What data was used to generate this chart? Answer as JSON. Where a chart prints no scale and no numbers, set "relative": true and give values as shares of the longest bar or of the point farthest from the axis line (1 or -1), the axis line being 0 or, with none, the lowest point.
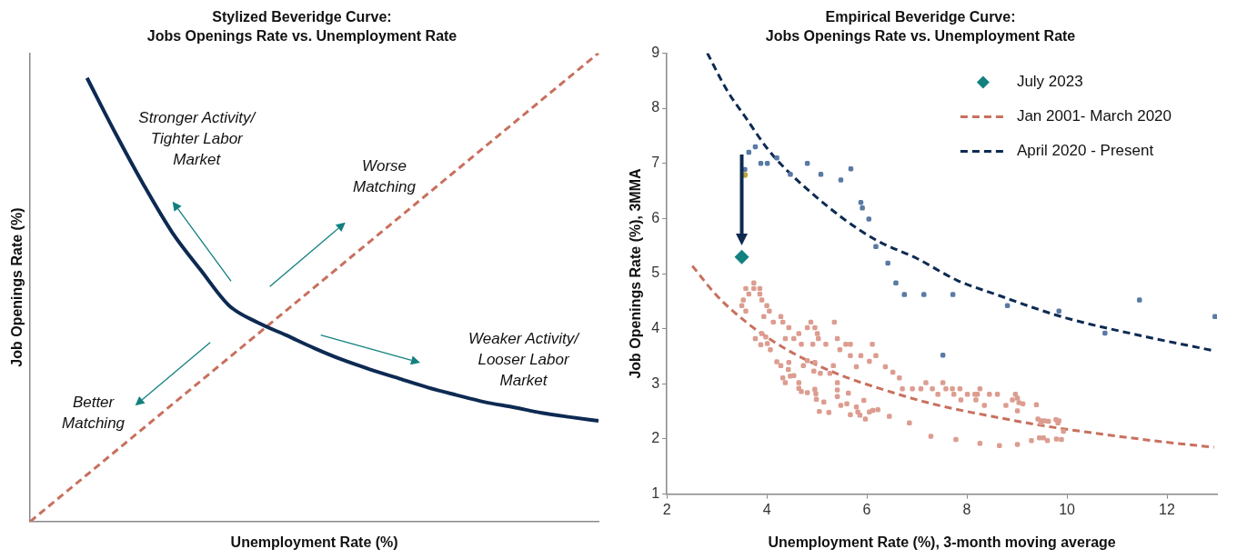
{
  "chart_data": [
    {
      "type": "line",
      "title": "Stylized Beveridge Curve:",
      "subtitle": "Jobs Openings Rate vs. Unemployment Rate",
      "xlabel": "Unemployment Rate (%)",
      "ylabel": "Job Openings Rate (%)",
      "relative": true,
      "tick_labels": false,
      "grid": false,
      "marker": "none",
      "categories": [
        null,
        null,
        null,
        null,
        null,
        null,
        null,
        null,
        null,
        null,
        null,
        null,
        null,
        null,
        null,
        null,
        null,
        null,
        null,
        null,
        null
      ],
      "series": [
        {
          "color": "#0d2a52",
          "line_style": "solid",
          "values": [
            null,
            null,
            0.947,
            0.829,
            0.718,
            0.617,
            0.537,
            0.461,
            0.425,
            0.398,
            0.37,
            0.345,
            0.324,
            0.305,
            0.286,
            0.27,
            0.255,
            0.244,
            0.232,
            0.223,
            0.215
          ]
        },
        {
          "color": "#c8705e",
          "line_style": "dashed",
          "values": [
            0,
            0.05,
            0.1,
            0.15,
            0.2,
            0.25,
            0.3,
            0.35,
            0.4,
            0.45,
            0.5,
            0.55,
            0.6,
            0.65,
            0.7,
            0.75,
            0.8,
            0.85,
            0.9,
            0.95,
            1
          ]
        }
      ],
      "annotations": [
        "Stronger Activity/ Tighter Labor Market",
        "Worse Matching",
        "Weaker Activity/ Looser Labor Market",
        "Better Matching"
      ]
    },
    {
      "type": "scatter",
      "title": "Empirical Beveridge Curve:",
      "subtitle": "Jobs Openings Rate vs. Unemployment Rate",
      "xlabel": "Unemployment Rate (%), 3-month moving average",
      "ylabel": "Job Openings Rate (%), 3MMA",
      "xlim": [
        2,
        13
      ],
      "xticks": [
        2,
        4,
        6,
        8,
        10,
        12
      ],
      "ylim": [
        1,
        9
      ],
      "yticks": [
        1,
        2,
        3,
        4,
        5,
        6,
        7,
        8,
        9
      ],
      "grid": false,
      "legend": "top right",
      "series": [
        {
          "type": "scatter",
          "color": "#dc9d90",
          "marker": "square",
          "x": [
            3.74,
            3.58,
            3.86,
            3.74,
            3.64,
            3.86,
            3.53,
            3.9,
            3.5,
            4.0,
            3.58,
            4.05,
            3.94,
            4.28,
            4.13,
            4.32,
            4.44,
            4.88,
            3.77,
            3.9,
            3.98,
            3.88,
            4.01,
            4.07,
            4.37,
            4.54,
            4.64,
            4.81,
            4.96,
            4.69,
            4.92,
            5.01,
            5.03,
            5.18,
            5.35,
            5.41,
            5.46,
            5.58,
            5.67,
            5.67,
            5.88,
            6.11,
            6.18,
            6.05,
            5.79,
            4.2,
            4.28,
            4.43,
            4.44,
            4.47,
            4.54,
            4.37,
            4.64,
            4.32,
            4.73,
            4.81,
            4.96,
            4.94,
            5.07,
            5.26,
            5.33,
            5.41,
            4.64,
            4.69,
            4.81,
            4.96,
            4.98,
            4.99,
            5.14,
            5.05,
            5.24,
            5.41,
            5.41,
            5.48,
            5.63,
            5.6,
            5.67,
            5.79,
            5.82,
            5.86,
            5.94,
            5.97,
            6.05,
            6.12,
            6.22,
            6.45,
            6.37,
            6.52,
            6.65,
            6.71,
            6.85,
            6.91,
            7.08,
            7.18,
            7.31,
            7.28,
            7.42,
            7.52,
            7.58,
            7.71,
            7.74,
            7.86,
            7.88,
            7.78,
            8.01,
            8.16,
            8.21,
            8.18,
            8.26,
            8.26,
            8.35,
            8.45,
            8.61,
            8.65,
            8.78,
            8.91,
            8.97,
            9.01,
            9.04,
            9.01,
            9.01,
            9.12,
            9.29,
            9.39,
            9.42,
            9.48,
            9.48,
            9.45,
            9.53,
            9.55,
            9.61,
            9.63,
            9.78,
            9.82,
            9.84,
            9.79,
            9.89,
            9.93
          ],
          "values": [
            4.83,
            4.73,
            4.73,
            4.73,
            4.63,
            4.63,
            4.52,
            4.52,
            4.42,
            4.42,
            4.32,
            4.32,
            4.22,
            4.22,
            4.12,
            4.12,
            4.02,
            4.12,
            3.82,
            3.91,
            3.85,
            3.71,
            3.73,
            3.62,
            3.82,
            3.82,
            3.91,
            4.02,
            4.02,
            3.72,
            3.72,
            3.91,
            3.82,
            3.72,
            4.12,
            3.82,
            3.62,
            3.72,
            3.72,
            3.51,
            3.51,
            3.72,
            3.51,
            3.41,
            3.31,
            3.4,
            3.33,
            3.26,
            3.39,
            3.14,
            3.15,
            3.02,
            3.02,
            3.11,
            3.33,
            3.42,
            3.39,
            3.23,
            3.19,
            3.19,
            3.33,
            3.02,
            2.92,
            2.86,
            2.84,
            2.9,
            2.82,
            2.72,
            2.67,
            2.5,
            2.48,
            2.89,
            2.77,
            2.61,
            2.83,
            2.64,
            2.44,
            2.58,
            2.49,
            2.43,
            2.7,
            2.36,
            2.49,
            2.52,
            2.53,
            2.41,
            3.31,
            3.21,
            3.11,
            2.91,
            2.29,
            2.91,
            2.91,
            3.02,
            2.91,
            2.05,
            2.81,
            3.02,
            2.91,
            2.91,
            2.81,
            2.91,
            2.71,
            1.99,
            2.81,
            2.81,
            2.81,
            2.71,
            2.91,
            1.92,
            2.61,
            2.81,
            2.81,
            1.88,
            2.61,
            2.71,
            2.81,
            2.74,
            2.66,
            2.51,
            1.9,
            2.64,
            1.97,
            2.62,
            2.36,
            2.33,
            2.29,
            2.02,
            2.02,
            2.33,
            1.97,
            2.32,
            2.35,
            2.29,
            2.33,
            2.0,
            1.99,
            2.14
          ]
        },
        {
          "type": "scatter",
          "color": "#5a7aa3",
          "marker": "square",
          "x": [
            3.56,
            3.64,
            3.77,
            3.88,
            4.01,
            4.2,
            4.47,
            4.81,
            5.08,
            5.48,
            5.68,
            5.88,
            5.91,
            6.04,
            6.18,
            6.42,
            6.58,
            6.75,
            7.14,
            7.72,
            8.81,
            9.84,
            10.76,
            11.45,
            12.96,
            7.52
          ],
          "values": [
            6.89,
            7.2,
            7.3,
            7.0,
            7.0,
            7.1,
            6.8,
            7.0,
            6.8,
            6.7,
            6.9,
            6.29,
            6.19,
            5.99,
            5.49,
            5.19,
            4.83,
            4.62,
            4.62,
            4.62,
            4.42,
            4.32,
            3.92,
            4.52,
            4.22,
            3.52
          ]
        },
        {
          "type": "scatter",
          "color": "#b8a23a",
          "marker": "circle",
          "x": [
            3.56
          ],
          "values": [
            6.79
          ]
        },
        {
          "name": "July 2023",
          "type": "scatter",
          "color": "#12807f",
          "marker": "diamond",
          "x": [
            3.5
          ],
          "values": [
            5.3
          ]
        },
        {
          "name": "Jan 2001- March 2020",
          "type": "line",
          "color": "#c8705e",
          "marker": "none",
          "line_style": "dashed",
          "x": [
            2.51,
            3.0,
            3.6,
            4.2,
            4.73,
            5.5,
            6.24,
            7.3,
            8.5,
            9.6,
            10.76,
            12.0,
            12.94
          ],
          "values": [
            5.14,
            4.6,
            4.11,
            3.73,
            3.46,
            3.15,
            2.92,
            2.64,
            2.41,
            2.23,
            2.08,
            1.94,
            1.85
          ]
        },
        {
          "name": "April 2020 - Present",
          "type": "line",
          "color": "#0d2a52",
          "marker": "none",
          "line_style": "dashed",
          "x": [
            2.81,
            3.2,
            3.6,
            4.0,
            4.35,
            5.48,
            6.2,
            6.99,
            7.8,
            8.65,
            9.3,
            10.0,
            11.5,
            12.94
          ],
          "values": [
            9.0,
            8.33,
            7.8,
            7.28,
            6.92,
            6.03,
            5.6,
            5.28,
            4.88,
            4.6,
            4.39,
            4.19,
            3.87,
            3.6
          ]
        }
      ]
    }
  ]
}
